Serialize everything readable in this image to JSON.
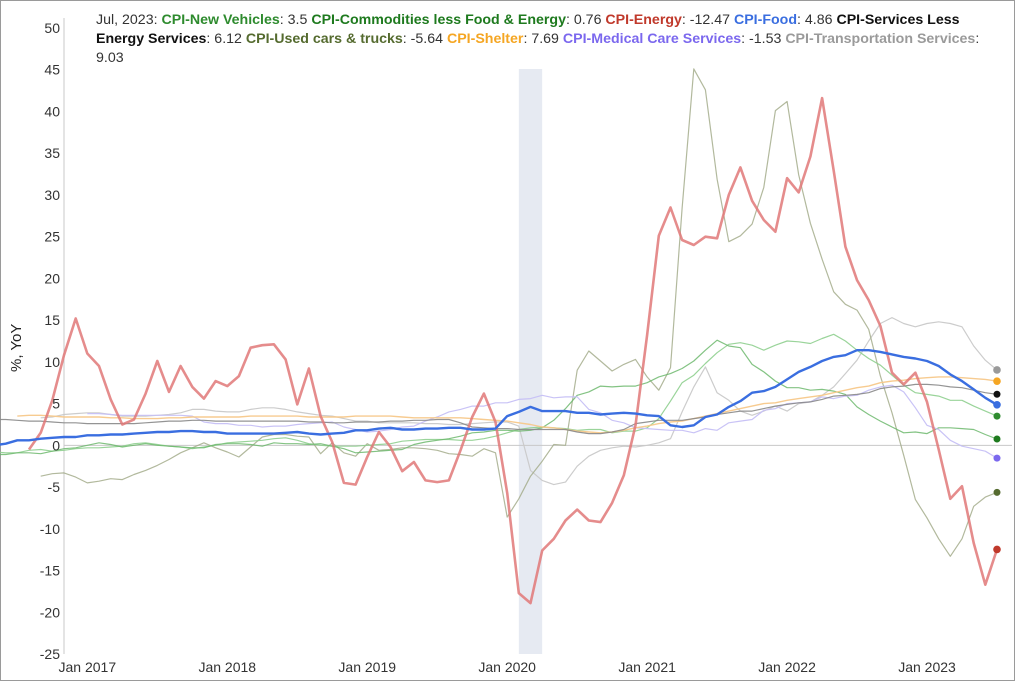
{
  "chart_data": {
    "type": "line",
    "ylabel": "%, YoY",
    "ylim": [
      -25,
      50
    ],
    "y_ticks": [
      50,
      45,
      40,
      35,
      30,
      25,
      20,
      15,
      10,
      5,
      0,
      -5,
      -10,
      -15,
      -20,
      -25
    ],
    "x_ticks": [
      "Jan 2017",
      "Jan 2018",
      "Jan 2019",
      "Jan 2020",
      "Jan 2021",
      "Jan 2022",
      "Jan 2023"
    ],
    "x_start": "2016-11",
    "x_end": "2023-07",
    "recession": {
      "start": "2020-02",
      "end": "2020-04"
    },
    "legend": {
      "date": "Jul, 2023",
      "entries": [
        {
          "name": "CPI-New Vehicles",
          "value": "3.5",
          "color": "#2e8b2e"
        },
        {
          "name": "CPI-Commodities less Food & Energy",
          "value": "0.76",
          "color": "#1e7a1e"
        },
        {
          "name": "CPI-Energy",
          "value": "-12.47",
          "color": "#c0392b"
        },
        {
          "name": "CPI-Food",
          "value": "4.86",
          "color": "#3a6ee0"
        },
        {
          "name": "CPI-Services Less Energy Services",
          "value": "6.12",
          "color": "#111111"
        },
        {
          "name": "CPI-Used cars & trucks",
          "value": "-5.64",
          "color": "#556b2f"
        },
        {
          "name": "CPI-Shelter",
          "value": "7.69",
          "color": "#f5a623"
        },
        {
          "name": "CPI-Medical Care Services",
          "value": "-1.53",
          "color": "#7b68ee"
        },
        {
          "name": "CPI-Transportation Services",
          "value": "9.03",
          "color": "#9a9a9a"
        }
      ]
    },
    "series": [
      {
        "name": "CPI-New Vehicles",
        "color": "#2e8b2e",
        "line_color": "#8fcf8f",
        "width": 1.2,
        "opacity": 0.9,
        "dot": 3.5,
        "values": [
          0.3,
          0.4,
          0.5,
          0.4,
          0.2,
          -0.3,
          -0.6,
          -0.8,
          -1.0,
          -1.2,
          -1.0,
          -0.9,
          -0.7,
          -0.8,
          -0.9,
          -0.9,
          -0.6,
          -0.5,
          -0.7,
          -0.6,
          -0.4,
          -0.3,
          -0.3,
          -0.2,
          -0.1,
          0.2,
          0.3,
          0.1,
          -0.1,
          -0.2,
          -0.4,
          -0.2,
          0.0,
          0.3,
          0.4,
          0.5,
          0.6,
          0.8,
          0.9,
          0.6,
          0.2,
          0.0,
          -0.1,
          -0.1,
          -0.1,
          0.0,
          0.1,
          0.2,
          0.5,
          0.6,
          0.7,
          0.7,
          0.7,
          0.6,
          0.6,
          0.8,
          1.1,
          1.5,
          1.9,
          2.1,
          2.2,
          2.1,
          2.0,
          1.8,
          1.9,
          1.9,
          1.5,
          1.7,
          1.7,
          2.1,
          3.2,
          5.3,
          7.5,
          8.4,
          9.8,
          11.1,
          12.1,
          12.3,
          12.0,
          11.4,
          12.0,
          12.5,
          12.4,
          12.2,
          12.8,
          13.3,
          12.5,
          11.4,
          10.4,
          9.6,
          8.4,
          7.2,
          6.3,
          6.1,
          5.9,
          5.4,
          5.4,
          4.7,
          4.1,
          3.5
        ]
      },
      {
        "name": "CPI-Commodities less Food & Energy",
        "color": "#1e7a1e",
        "line_color": "#6db86d",
        "width": 1.2,
        "opacity": 0.85,
        "dot": 3.5,
        "values": [
          -0.6,
          -0.6,
          -0.5,
          -0.5,
          -0.5,
          -0.6,
          -0.8,
          -0.9,
          -0.9,
          -1.0,
          -1.1,
          -1.1,
          -0.9,
          -0.9,
          -1.0,
          -0.7,
          -0.4,
          -0.3,
          0.0,
          0.3,
          0.1,
          -0.2,
          0.0,
          0.2,
          0.0,
          -0.1,
          -0.2,
          -0.3,
          -0.3,
          0.1,
          0.2,
          0.2,
          0.1,
          -0.1,
          0.3,
          0.2,
          0.2,
          0.1,
          0.2,
          -0.1,
          -0.4,
          -0.9,
          -0.8,
          -0.7,
          -0.6,
          -0.5,
          0.1,
          0.4,
          0.6,
          0.8,
          1.1,
          1.5,
          1.6,
          1.8,
          1.8,
          1.7,
          1.8,
          2.1,
          3.0,
          4.4,
          6.0,
          6.4,
          7.1,
          7.0,
          7.1,
          7.1,
          7.5,
          8.2,
          8.6,
          9.2,
          10.1,
          11.4,
          12.6,
          11.9,
          11.7,
          9.7,
          8.8,
          7.7,
          6.9,
          6.9,
          6.6,
          6.7,
          6.5,
          6.1,
          4.6,
          3.7,
          2.9,
          2.2,
          1.5,
          1.6,
          1.4,
          2.1,
          2.1,
          2.0,
          1.9,
          1.3,
          0.76
        ]
      },
      {
        "name": "CPI-Energy",
        "color": "#c0392b",
        "line_color": "#e07878",
        "width": 2.6,
        "opacity": 0.85,
        "dot": 3.8,
        "values": [
          -0.5,
          1.5,
          5.4,
          10.8,
          15.2,
          11.0,
          9.5,
          5.5,
          2.5,
          3.1,
          6.2,
          10.1,
          6.4,
          9.5,
          7.0,
          5.6,
          7.7,
          7.1,
          8.3,
          11.7,
          12.0,
          12.1,
          10.3,
          4.9,
          9.2,
          3.5,
          0.4,
          -4.5,
          -4.7,
          -1.4,
          1.6,
          -0.2,
          -3.1,
          -2.0,
          -4.2,
          -4.4,
          -4.2,
          -0.6,
          3.4,
          6.2,
          2.8,
          -5.7,
          -17.7,
          -18.9,
          -12.6,
          -11.2,
          -9.0,
          -7.7,
          -9.0,
          -9.2,
          -6.9,
          -3.6,
          2.4,
          13.2,
          25.1,
          28.5,
          24.6,
          24.0,
          25.0,
          24.8,
          30.0,
          33.3,
          29.3,
          27.0,
          25.6,
          32.0,
          30.3,
          34.6,
          41.6,
          32.9,
          23.8,
          19.8,
          17.4,
          14.3,
          8.7,
          7.3,
          8.7,
          5.2,
          -0.5,
          -6.4,
          -4.9,
          -11.7,
          -16.7,
          -12.47
        ]
      },
      {
        "name": "CPI-Food",
        "color": "#3a6ee0",
        "line_color": "#3a6ee0",
        "width": 2.4,
        "opacity": 1,
        "dot": 3.8,
        "values": [
          -0.3,
          -0.2,
          0.0,
          0.2,
          0.6,
          0.6,
          0.8,
          0.9,
          1.0,
          1.0,
          1.2,
          1.2,
          1.3,
          1.3,
          1.4,
          1.5,
          1.6,
          1.6,
          1.7,
          1.7,
          1.6,
          1.6,
          1.4,
          1.4,
          1.4,
          1.4,
          1.4,
          1.5,
          1.6,
          1.4,
          1.3,
          1.4,
          1.5,
          1.8,
          1.8,
          2.0,
          2.1,
          1.9,
          1.9,
          2.0,
          2.0,
          2.1,
          2.1,
          1.9,
          1.9,
          2.0,
          3.5,
          4.0,
          4.6,
          4.1,
          4.1,
          4.1,
          3.9,
          3.9,
          3.7,
          3.8,
          3.9,
          3.8,
          3.6,
          3.5,
          2.4,
          2.2,
          2.4,
          3.4,
          3.7,
          4.6,
          5.3,
          6.3,
          6.5,
          7.0,
          7.9,
          8.8,
          9.4,
          10.1,
          10.6,
          10.8,
          11.4,
          11.4,
          11.2,
          10.9,
          10.6,
          10.4,
          10.1,
          9.5,
          8.5,
          7.7,
          6.7,
          5.7,
          4.86
        ]
      },
      {
        "name": "CPI-Services Less Energy Services",
        "color": "#111111",
        "line_color": "#888888",
        "width": 1.2,
        "opacity": 0.9,
        "dot": 3.5,
        "values": [
          3.0,
          3.1,
          3.1,
          3.1,
          3.1,
          3.0,
          2.9,
          2.9,
          2.8,
          2.7,
          2.7,
          2.6,
          2.6,
          2.6,
          2.6,
          2.6,
          2.7,
          2.8,
          2.9,
          2.9,
          3.0,
          3.0,
          2.9,
          2.9,
          2.9,
          2.9,
          2.9,
          2.9,
          2.9,
          2.9,
          2.8,
          2.8,
          2.7,
          2.7,
          2.8,
          2.8,
          2.8,
          2.9,
          2.9,
          3.0,
          3.0,
          3.1,
          3.1,
          2.7,
          2.2,
          2.1,
          2.0,
          2.0,
          1.9,
          1.9,
          1.9,
          1.9,
          1.9,
          1.6,
          1.4,
          1.4,
          1.6,
          1.9,
          2.6,
          2.8,
          3.0,
          3.0,
          3.0,
          3.2,
          3.4,
          3.7,
          3.9,
          4.1,
          4.1,
          4.4,
          4.7,
          4.9,
          5.1,
          5.2,
          5.5,
          5.9,
          6.0,
          6.1,
          6.3,
          6.8,
          7.0,
          7.1,
          7.3,
          7.3,
          7.2,
          7.0,
          6.9,
          6.6,
          6.3,
          6.12
        ]
      },
      {
        "name": "CPI-Used cars & trucks",
        "color": "#556b2f",
        "line_color": "#a5ad8c",
        "width": 1.2,
        "opacity": 0.85,
        "dot": 3.5,
        "values": [
          -3.7,
          -3.4,
          -3.3,
          -3.8,
          -4.5,
          -4.3,
          -4.0,
          -4.1,
          -3.5,
          -3.0,
          -2.4,
          -1.7,
          -0.9,
          -0.3,
          0.3,
          -0.3,
          -0.8,
          -1.4,
          -0.2,
          1.0,
          1.3,
          1.3,
          1.1,
          1.0,
          -1.0,
          0.3,
          -0.9,
          -1.3,
          0.2,
          -0.6,
          -0.5,
          -0.3,
          -0.3,
          -0.4,
          -0.6,
          -1.0,
          -1.1,
          -1.3,
          -0.4,
          -0.9,
          -8.6,
          -6.4,
          -3.7,
          -1.9,
          0.1,
          0.0,
          9.0,
          11.3,
          10.1,
          8.9,
          9.7,
          10.3,
          8.2,
          6.6,
          9.3,
          28.4,
          45.1,
          42.6,
          31.9,
          24.4,
          25.1,
          26.5,
          30.9,
          40.1,
          41.2,
          32.4,
          26.6,
          22.3,
          18.4,
          16.9,
          16.2,
          13.9,
          8.3,
          3.9,
          -1.2,
          -6.5,
          -8.7,
          -11.2,
          -13.3,
          -11.2,
          -7.3,
          -6.2,
          -5.64
        ]
      },
      {
        "name": "CPI-Shelter",
        "color": "#f5a623",
        "line_color": "#f7c88a",
        "width": 1.4,
        "opacity": 0.95,
        "dot": 3.8,
        "values": [
          3.5,
          3.6,
          3.6,
          3.5,
          3.4,
          3.4,
          3.4,
          3.4,
          3.3,
          3.3,
          3.2,
          3.2,
          3.2,
          3.3,
          3.3,
          3.4,
          3.4,
          3.4,
          3.4,
          3.4,
          3.5,
          3.5,
          3.5,
          3.5,
          3.5,
          3.4,
          3.4,
          3.4,
          3.4,
          3.5,
          3.5,
          3.5,
          3.5,
          3.4,
          3.3,
          3.3,
          3.3,
          3.3,
          3.3,
          3.2,
          3.1,
          3.0,
          2.9,
          2.7,
          2.5,
          2.2,
          2.1,
          1.9,
          1.7,
          1.6,
          1.5,
          1.6,
          1.8,
          2.1,
          2.3,
          2.6,
          2.8,
          2.9,
          3.2,
          3.5,
          3.8,
          4.1,
          4.4,
          4.7,
          5.0,
          5.1,
          5.4,
          5.6,
          5.8,
          6.0,
          6.3,
          6.6,
          6.9,
          7.1,
          7.5,
          7.7,
          7.8,
          8.0,
          8.1,
          8.2,
          8.2,
          8.1,
          8.0,
          7.9,
          7.69
        ]
      },
      {
        "name": "CPI-Medical Care Services",
        "color": "#7b68ee",
        "line_color": "#c6c0f5",
        "width": 1.2,
        "opacity": 0.95,
        "dot": 3.5,
        "values": [
          3.8,
          3.8,
          3.7,
          3.6,
          3.6,
          3.6,
          3.6,
          3.6,
          3.6,
          3.5,
          2.8,
          2.6,
          2.6,
          2.4,
          2.4,
          2.2,
          2.3,
          2.3,
          2.5,
          2.6,
          2.7,
          2.8,
          2.2,
          1.9,
          1.6,
          1.7,
          1.9,
          2.2,
          2.3,
          2.9,
          3.4,
          4.0,
          4.3,
          4.7,
          4.7,
          5.1,
          5.1,
          5.5,
          5.6,
          6.0,
          5.7,
          5.8,
          5.8,
          4.3,
          3.9,
          3.0,
          2.7,
          2.1,
          2.0,
          1.9,
          1.8,
          1.8,
          1.5,
          2.0,
          1.8,
          2.7,
          2.9,
          3.1,
          4.2,
          4.4,
          5.0,
          5.1,
          5.2,
          5.8,
          5.6,
          5.9,
          6.0,
          6.6,
          7.0,
          7.2,
          6.4,
          4.5,
          2.4,
          1.9,
          0.6,
          -0.1,
          -0.4,
          -0.7,
          -1.53
        ]
      },
      {
        "name": "CPI-Transportation Services",
        "color": "#9a9a9a",
        "line_color": "#c9c9c9",
        "width": 1.2,
        "opacity": 0.95,
        "dot": 3.8,
        "values": [
          3.3,
          3.4,
          3.7,
          3.8,
          3.9,
          3.9,
          3.7,
          3.5,
          3.5,
          3.5,
          3.6,
          3.7,
          3.9,
          4.3,
          4.3,
          4.1,
          4.0,
          4.0,
          4.3,
          4.5,
          4.5,
          4.3,
          4.0,
          3.8,
          3.6,
          3.5,
          3.2,
          2.9,
          2.9,
          2.7,
          2.7,
          2.7,
          2.7,
          2.6,
          2.6,
          2.5,
          2.5,
          2.6,
          2.7,
          2.8,
          2.8,
          2.3,
          -3.0,
          -4.2,
          -4.7,
          -4.4,
          -2.5,
          -1.3,
          -0.6,
          -0.3,
          -0.1,
          -0.2,
          0.0,
          0.3,
          0.8,
          4.0,
          7.0,
          9.4,
          6.3,
          5.4,
          4.1,
          3.6,
          4.1,
          4.7,
          4.1,
          5.0,
          5.2,
          6.0,
          7.0,
          8.6,
          10.2,
          12.5,
          14.6,
          15.3,
          14.6,
          14.2,
          14.6,
          14.8,
          14.6,
          14.2,
          11.9,
          10.2,
          9.03
        ]
      }
    ]
  }
}
